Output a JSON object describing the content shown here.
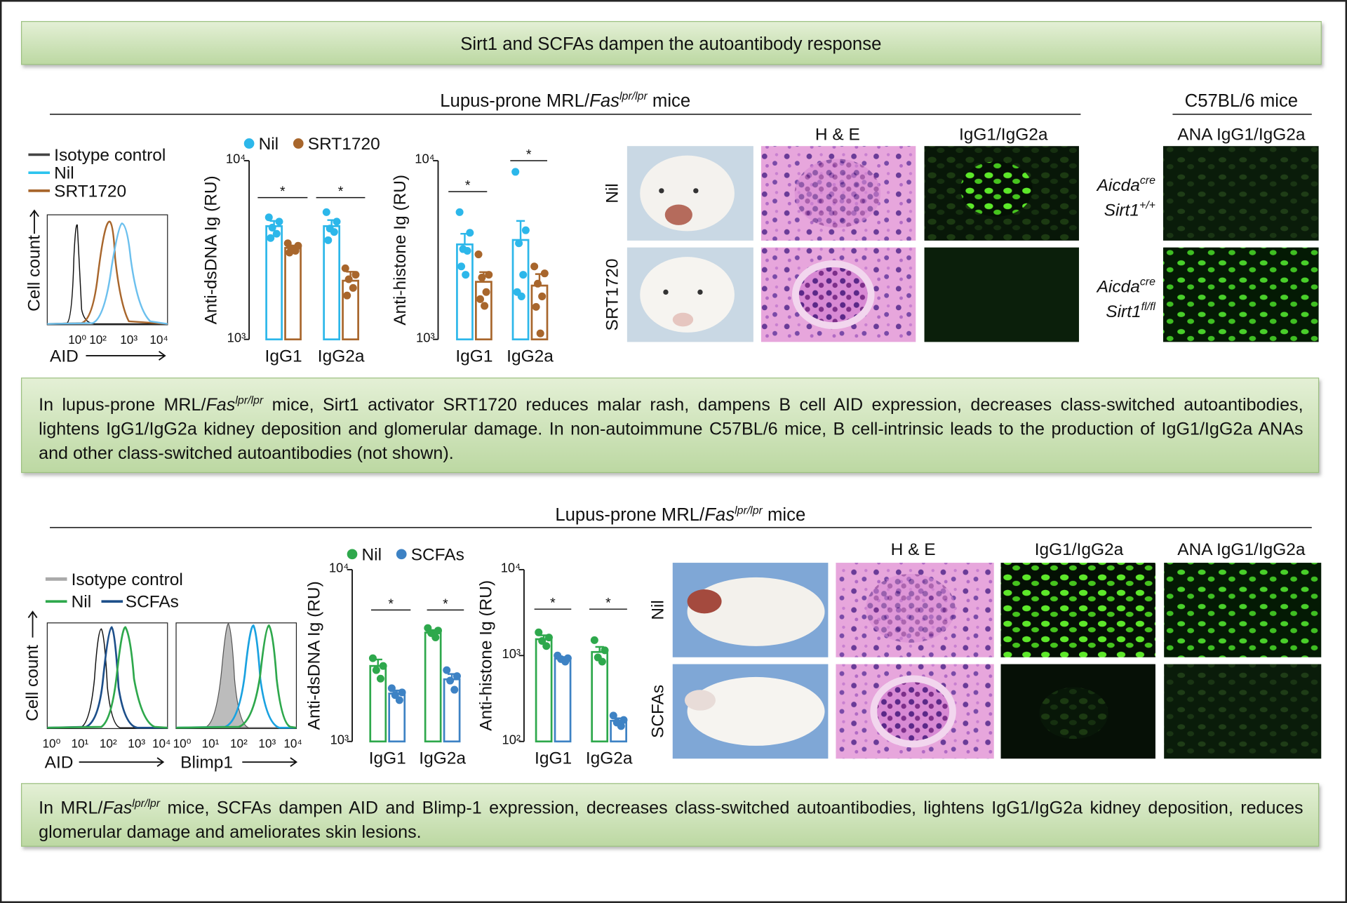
{
  "header": {
    "title": "Sirt1 and SCFAs dampen the autoantibody response"
  },
  "top": {
    "heading": {
      "before": "Lupus-prone MRL/",
      "gene": "Fas",
      "sup": "lpr/lpr",
      "after": " mice"
    },
    "c57_heading": "C57BL/6 mice",
    "flow": {
      "legend": [
        "Isotype control",
        "Nil",
        "SRT1720"
      ],
      "ylabel": "Cell count",
      "xlabel": "AID",
      "xticks": [
        "10⁰",
        "10²",
        "10³",
        "10⁴"
      ]
    },
    "charts": [
      {
        "type": "bar",
        "ylabel": "Anti-dsDNA Ig (RU)",
        "log_scale": true,
        "categories": [
          "IgG1",
          "IgG2a"
        ],
        "ylim": [
          1000,
          10000
        ],
        "yticks": [
          {
            "value": 1000,
            "label": "10³"
          },
          {
            "value": 10000,
            "label": "10⁴"
          }
        ],
        "series": [
          {
            "name": "Nil",
            "color": "#2cb7ea",
            "values": [
              4300,
              4300
            ],
            "errors": [
              300,
              350
            ],
            "points": [
              [
                4820,
                4560,
                4220,
                3900,
                3690
              ],
              [
                5150,
                4560,
                4170,
                3990,
                3590
              ]
            ]
          },
          {
            "name": "SRT1720",
            "color": "#a8662c",
            "values": [
              3250,
              2130
            ],
            "errors": [
              100,
              260
            ],
            "points": [
              [
                3450,
                3340,
                3230,
                3130,
                3060
              ],
              [
                2500,
                2300,
                2170,
                1940,
                1760
              ]
            ]
          }
        ],
        "significance": [
          "*",
          "*"
        ]
      },
      {
        "type": "bar",
        "ylabel": "Anti-histone Ig (RU)",
        "log_scale": true,
        "categories": [
          "IgG1",
          "IgG2a"
        ],
        "ylim": [
          1000,
          10000
        ],
        "yticks": [
          {
            "value": 1000,
            "label": "10³"
          },
          {
            "value": 10000,
            "label": "10⁴"
          }
        ],
        "series": [
          {
            "name": "Nil",
            "color": "#2cb7ea",
            "values": [
              3400,
              3600
            ],
            "errors": [
              500,
              1000
            ],
            "points": [
              [
                5150,
                3950,
                3200,
                3130,
                2560,
                2300
              ],
              [
                8660,
                4080,
                3450,
                2300,
                1840,
                1740
              ]
            ]
          },
          {
            "name": "SRT1720",
            "color": "#a8662c",
            "values": [
              2100,
              2000
            ],
            "errors": [
              280,
              320
            ],
            "points": [
              [
                2990,
                2300,
                2220,
                1840,
                1680,
                1540
              ],
              [
                2560,
                2340,
                2050,
                1740,
                1520,
                1080
              ]
            ]
          }
        ],
        "significance": [
          "*",
          "*"
        ]
      }
    ],
    "columns": [
      "H & E",
      "IgG1/IgG2a"
    ],
    "rows": [
      "Nil",
      "SRT1720"
    ],
    "ana_label": "ANA IgG1/IgG2a",
    "genotypes": [
      {
        "gene1": "Aicda",
        "sup1": "cre",
        "gene2": "Sirt1",
        "sup2": "+/+"
      },
      {
        "gene1": "Aicda",
        "sup1": "cre",
        "gene2": "Sirt1",
        "sup2": "fl/fl"
      }
    ],
    "summary": {
      "before": "In lupus-prone MRL/",
      "gene": "Fas",
      "sup": "lpr/lpr",
      "after": " mice, Sirt1 activator SRT1720 reduces malar rash, dampens B cell AID expression, decreases class-switched autoantibodies, lightens IgG1/IgG2a kidney deposition and glomerular damage. In non-autoimmune C57BL/6 mice, B cell-intrinsic leads to the production of IgG1/IgG2a ANAs and other class-switched autoantibodies (not shown)."
    }
  },
  "bottom": {
    "heading": {
      "before": "Lupus-prone MRL/",
      "gene": "Fas",
      "sup": "lpr/lpr",
      "after": " mice"
    },
    "flow": {
      "legend": [
        "Isotype control",
        "Nil",
        "SCFAs"
      ],
      "ylabel": "Cell count",
      "xlabels": [
        "AID",
        "Blimp1"
      ],
      "xticks": [
        "10⁰",
        "10¹",
        "10²",
        "10³",
        "10⁴"
      ]
    },
    "charts": [
      {
        "type": "bar",
        "ylabel": "Anti-dsDNA Ig (RU)",
        "log_scale": true,
        "categories": [
          "IgG1",
          "IgG2a"
        ],
        "ylim": [
          1000,
          10000
        ],
        "yticks": [
          {
            "value": 1000,
            "label": "10³"
          },
          {
            "value": 10000,
            "label": "10⁴"
          }
        ],
        "series": [
          {
            "name": "Nil",
            "color": "#2ea84c",
            "values": [
              2750,
              4300
            ],
            "errors": [
              250,
              150
            ],
            "points": [
              [
                3050,
                2750,
                2600,
                2320
              ],
              [
                4570,
                4420,
                4270,
                4030
              ]
            ]
          },
          {
            "name": "SCFAs",
            "color": "#3d82c4",
            "values": [
              1900,
              2300
            ],
            "errors": [
              80,
              170
            ],
            "points": [
              [
                2040,
                1930,
                1860,
                1740
              ],
              [
                2600,
                2400,
                2260,
                2000
              ]
            ]
          }
        ],
        "significance": [
          "*",
          "*"
        ]
      },
      {
        "type": "bar",
        "ylabel": "Anti-histone Ig (RU)",
        "log_scale": true,
        "categories": [
          "IgG1",
          "IgG2a"
        ],
        "ylim": [
          100,
          10000
        ],
        "yticks": [
          {
            "value": 100,
            "label": "10²"
          },
          {
            "value": 1000,
            "label": "10³"
          },
          {
            "value": 10000,
            "label": "10⁴"
          }
        ],
        "series": [
          {
            "name": "Nil",
            "color": "#2ea84c",
            "values": [
              1550,
              1100
            ],
            "errors": [
              170,
              160
            ],
            "points": [
              [
                1860,
                1620,
                1480,
                1290
              ],
              [
                1510,
                1150,
                950,
                850
              ]
            ]
          },
          {
            "name": "SCFAs",
            "color": "#3d82c4",
            "values": [
              920,
              174
            ],
            "errors": [
              40,
              12
            ],
            "points": [
              [
                1000,
                930,
                910,
                850
              ],
              [
                200,
                178,
                166,
                151
              ]
            ]
          }
        ],
        "significance": [
          "*",
          "*"
        ]
      }
    ],
    "columns": [
      "H & E",
      "IgG1/IgG2a",
      "ANA IgG1/IgG2a"
    ],
    "rows": [
      "Nil",
      "SCFAs"
    ],
    "summary": {
      "before": "In MRL/",
      "gene": "Fas",
      "sup": "lpr/lpr",
      "after": " mice, SCFAs dampen AID and Blimp-1 expression, decreases class-switched autoantibodies, lightens IgG1/IgG2a kidney deposition, reduces glomerular damage and ameliorates skin lesions."
    }
  }
}
